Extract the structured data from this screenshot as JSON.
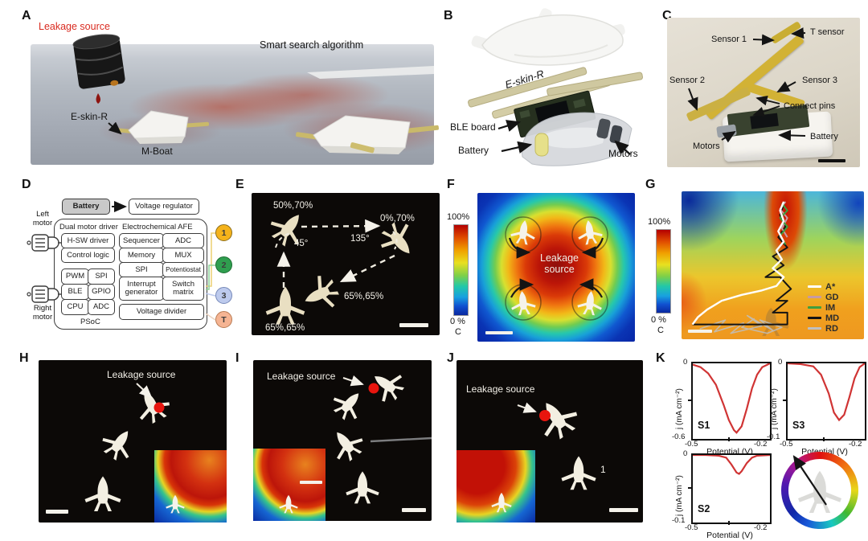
{
  "figure": {
    "background": "#ffffff"
  },
  "panels": {
    "a": {
      "label": "A",
      "leakage_label": "Leakage source",
      "algorithm_label": "Smart search algorithm",
      "eskin_label": "E-skin-R",
      "boat_label": "M-Boat",
      "leakage_color": "#d92b20"
    },
    "b": {
      "label": "B",
      "eskin_label": "E-skin-R",
      "ble_label": "BLE board",
      "battery_label": "Battery",
      "motors_label": "Motors"
    },
    "c": {
      "label": "C",
      "t_sensor": "T sensor",
      "sensor1": "Sensor 1",
      "sensor2": "Sensor 2",
      "sensor3": "Sensor 3",
      "connect_pins": "Connect pins",
      "motors": "Motors",
      "battery": "Battery"
    },
    "d": {
      "label": "D",
      "battery": "Battery",
      "voltage_regulator": "Voltage regulator",
      "left_motor": "Left motor",
      "right_motor": "Right motor",
      "dual_motor_driver": "Dual motor driver",
      "hsw_driver": "H-SW driver",
      "control_logic": "Control logic",
      "grid": [
        [
          "PWM",
          "SPI"
        ],
        [
          "BLE",
          "GPIO"
        ],
        [
          "CPU",
          "ADC"
        ]
      ],
      "afe_title": "Electrochemical AFE",
      "afe": [
        [
          "Sequencer",
          "ADC"
        ],
        [
          "Memory",
          "MUX"
        ],
        [
          "SPI",
          "Potentiostat"
        ],
        [
          "Interrupt generator",
          "Switch matrix"
        ]
      ],
      "voltage_divider": "Voltage divider",
      "psoc": "PSoC",
      "ports": [
        {
          "id": "1",
          "color": "#f5b31b"
        },
        {
          "id": "2",
          "color": "#2f9e4f"
        },
        {
          "id": "3",
          "color": "#bdcaed"
        },
        {
          "id": "T",
          "color": "#f5b493"
        }
      ]
    },
    "e": {
      "label": "E",
      "speed_tl": "50%,70%",
      "speed_tr": "0%,70%",
      "speed_mid": "65%,65%",
      "speed_bl": "65%,65%",
      "angle_left": "45°",
      "angle_right": "135°"
    },
    "f": {
      "label": "F",
      "cb_top": "100%",
      "cb_bottom": "0 %",
      "cb_unit": "C",
      "center_label": "Leakage source"
    },
    "g": {
      "label": "G",
      "cb_top": "100%",
      "cb_bottom": "0 %",
      "cb_unit": "C",
      "paths": [
        {
          "name": "A*",
          "color": "#ffffff",
          "width": 2.4,
          "points": [
            [
              6,
              90
            ],
            [
              9,
              85
            ],
            [
              14,
              80
            ],
            [
              22,
              74
            ],
            [
              33,
              70
            ],
            [
              44,
              67
            ],
            [
              52,
              64
            ],
            [
              56,
              58
            ],
            [
              50,
              52
            ],
            [
              55,
              46
            ],
            [
              52,
              40
            ],
            [
              56,
              34
            ],
            [
              53,
              27
            ],
            [
              56,
              20
            ],
            [
              54,
              13
            ],
            [
              56,
              7
            ]
          ]
        },
        {
          "name": "GD",
          "color": "#c59ba4",
          "width": 2,
          "points": [
            [
              57,
              7
            ],
            [
              54,
              12
            ],
            [
              58,
              18
            ],
            [
              55,
              25
            ],
            [
              58,
              31
            ]
          ]
        },
        {
          "name": "IM",
          "color": "#3f9e3f",
          "width": 2,
          "points": [
            [
              55,
              8
            ],
            [
              58,
              13
            ],
            [
              54,
              18
            ],
            [
              58,
              24
            ],
            [
              54,
              30
            ],
            [
              57,
              36
            ]
          ]
        },
        {
          "name": "MD",
          "color": "#141414",
          "width": 2,
          "points": [
            [
              6,
              90
            ],
            [
              58,
              90
            ],
            [
              58,
              82
            ],
            [
              50,
              82
            ],
            [
              58,
              74
            ],
            [
              52,
              74
            ],
            [
              60,
              66
            ],
            [
              54,
              58
            ],
            [
              46,
              58
            ],
            [
              56,
              50
            ],
            [
              50,
              44
            ],
            [
              58,
              38
            ],
            [
              53,
              31
            ],
            [
              57,
              24
            ],
            [
              54,
              16
            ],
            [
              56,
              9
            ]
          ]
        },
        {
          "name": "RD",
          "color": "#bfbfbf",
          "width": 1.6,
          "points": [
            [
              10,
              93
            ],
            [
              24,
              87
            ],
            [
              18,
              95
            ],
            [
              34,
              89
            ],
            [
              27,
              96
            ],
            [
              44,
              91
            ],
            [
              36,
              84
            ],
            [
              50,
              94
            ],
            [
              43,
              87
            ],
            [
              55,
              92
            ],
            [
              47,
              96
            ],
            [
              33,
              92
            ],
            [
              40,
              86
            ]
          ]
        }
      ]
    },
    "h": {
      "label": "H",
      "leakage_label": "Leakage source"
    },
    "i": {
      "label": "I",
      "leakage_label": "Leakage source"
    },
    "j": {
      "label": "J",
      "leakage_label": "Leakage source",
      "boat_number": "1"
    },
    "k": {
      "label": "K"
    }
  },
  "chart_data": [
    {
      "type": "line",
      "name": "S1",
      "xlabel": "Potential (V)",
      "ylabel": "j (mA cm⁻²)",
      "xlim": [
        -0.5,
        -0.2
      ],
      "ylim": [
        -0.6,
        0
      ],
      "xtick_labels": [
        "-0.5",
        "-0.2"
      ],
      "ytick_labels": [
        "0",
        "-0.6"
      ],
      "color": "#d03434",
      "x": [
        -0.5,
        -0.47,
        -0.44,
        -0.41,
        -0.38,
        -0.36,
        -0.34,
        -0.33,
        -0.31,
        -0.29,
        -0.27,
        -0.25,
        -0.23,
        -0.21,
        -0.2
      ],
      "y": [
        -0.01,
        -0.03,
        -0.08,
        -0.17,
        -0.33,
        -0.45,
        -0.53,
        -0.55,
        -0.5,
        -0.36,
        -0.2,
        -0.09,
        -0.03,
        -0.01,
        0
      ]
    },
    {
      "type": "line",
      "name": "S2",
      "xlabel": "Potential (V)",
      "ylabel": "j (mA cm⁻²)",
      "xlim": [
        -0.5,
        -0.2
      ],
      "ylim": [
        -0.1,
        0
      ],
      "xtick_labels": [
        "-0.5",
        "-0.2"
      ],
      "ytick_labels": [
        "0",
        "-0.1"
      ],
      "color": "#d03434",
      "x": [
        -0.5,
        -0.45,
        -0.4,
        -0.37,
        -0.35,
        -0.33,
        -0.32,
        -0.31,
        -0.29,
        -0.27,
        -0.25,
        -0.2
      ],
      "y": [
        0,
        0,
        -0.001,
        -0.004,
        -0.014,
        -0.026,
        -0.028,
        -0.024,
        -0.012,
        -0.004,
        -0.001,
        0
      ]
    },
    {
      "type": "line",
      "name": "S3",
      "xlabel": "Potential (V)",
      "ylabel": "j (mA cm⁻²)",
      "xlim": [
        -0.5,
        -0.2
      ],
      "ylim": [
        -0.1,
        0
      ],
      "xtick_labels": [
        "-0.5",
        "-0.2"
      ],
      "ytick_labels": [
        "0",
        "-0.1"
      ],
      "color": "#d03434",
      "x": [
        -0.5,
        -0.45,
        -0.4,
        -0.37,
        -0.34,
        -0.32,
        -0.3,
        -0.28,
        -0.26,
        -0.24,
        -0.22,
        -0.2
      ],
      "y": [
        0,
        -0.001,
        -0.004,
        -0.015,
        -0.04,
        -0.065,
        -0.075,
        -0.068,
        -0.045,
        -0.02,
        -0.005,
        0
      ]
    }
  ]
}
